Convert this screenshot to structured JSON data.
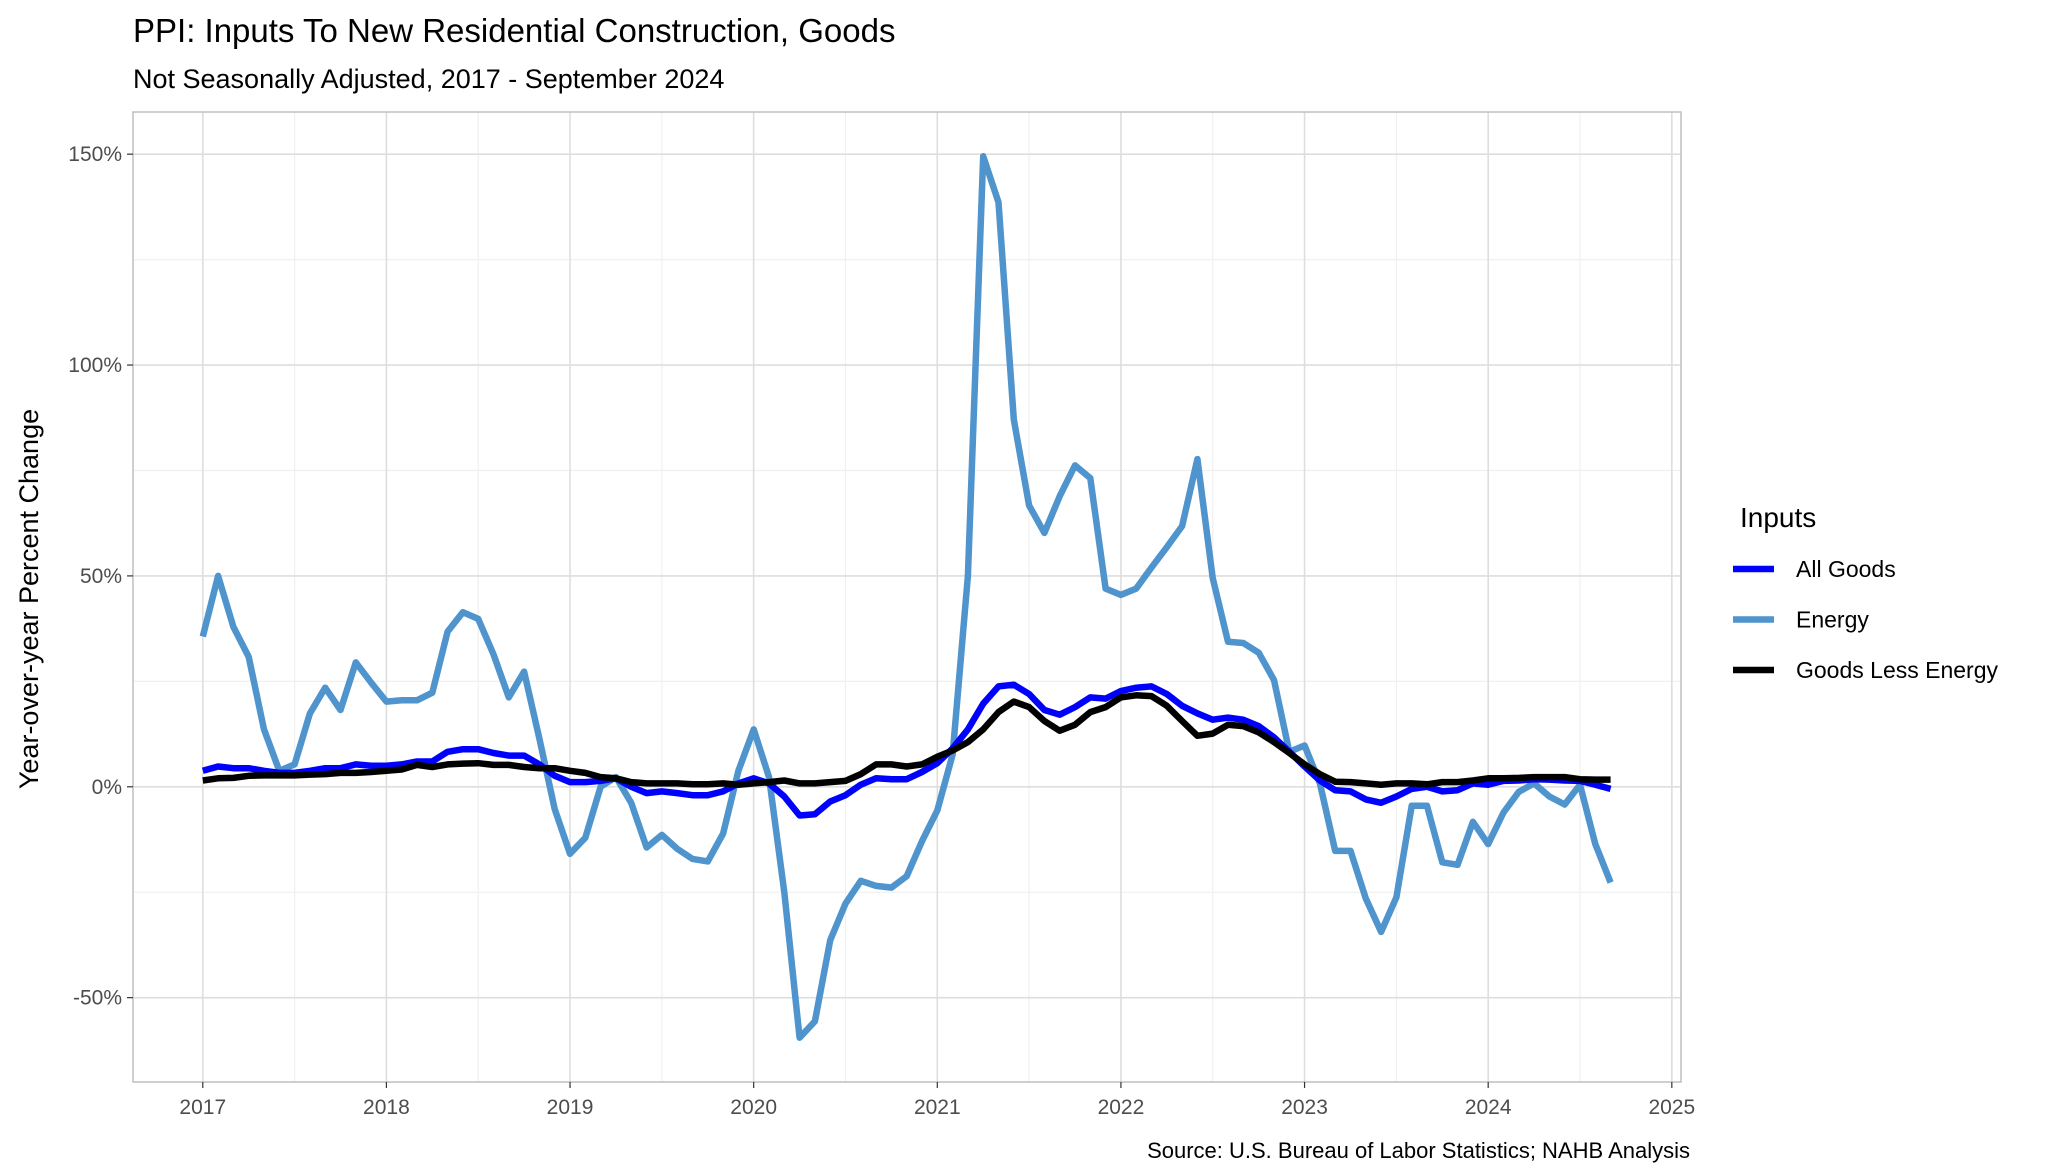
{
  "chart_data": {
    "type": "line",
    "title": "PPI: Inputs To New Residential Construction, Goods",
    "subtitle": "Not Seasonally Adjusted, 2017 - September 2024",
    "xlabel": "",
    "ylabel": "Year-over-year Percent Change",
    "caption": "Source: U.S. Bureau of Labor Statistics; NAHB Analysis",
    "x_start": "2017-01",
    "x_end": "2024-09",
    "x_frequency": "monthly",
    "xlim": [
      2016.62,
      2025.05
    ],
    "ylim": [
      -70,
      160
    ],
    "x_ticks": [
      "2017",
      "2018",
      "2019",
      "2020",
      "2021",
      "2022",
      "2023",
      "2024",
      "2025"
    ],
    "y_ticks": [
      {
        "value": 150,
        "label": "150%"
      },
      {
        "value": 100,
        "label": "100%"
      },
      {
        "value": 50,
        "label": "50%"
      },
      {
        "value": 0,
        "label": "0%"
      },
      {
        "value": -50,
        "label": "-50%"
      }
    ],
    "grid": true,
    "legend": {
      "title": "Inputs",
      "position": "right"
    },
    "series": [
      {
        "name": "All Goods",
        "color": "#0000FF",
        "values": [
          3.8,
          4.8,
          4.4,
          4.4,
          3.8,
          3.3,
          3.3,
          3.8,
          4.4,
          4.4,
          5.3,
          5,
          5,
          5.3,
          6,
          6,
          8.3,
          8.9,
          8.9,
          8,
          7.4,
          7.4,
          5.3,
          2.6,
          1.1,
          1.1,
          1.4,
          2,
          0,
          -1.5,
          -1.1,
          -1.5,
          -2,
          -2,
          -1.1,
          0.8,
          2,
          0.8,
          -2.3,
          -6.8,
          -6.5,
          -3.5,
          -2,
          0.5,
          2,
          1.8,
          1.8,
          3.5,
          5.6,
          9.1,
          13.6,
          19.7,
          23.8,
          24.2,
          22,
          18.2,
          17.1,
          18.9,
          21.2,
          20.9,
          22.7,
          23.5,
          23.8,
          22,
          19.2,
          17.4,
          15.9,
          16.4,
          15.9,
          14.4,
          11.7,
          8.3,
          4.8,
          1.5,
          -0.8,
          -1.1,
          -3,
          -3.8,
          -2.3,
          -0.5,
          0,
          -1.1,
          -0.8,
          0.8,
          0.5,
          1.4,
          1.5,
          1.8,
          1.7,
          1.5,
          1.4,
          0.5,
          -0.5
        ]
      },
      {
        "name": "Energy",
        "color": "#4F94CD",
        "values": [
          35.6,
          50,
          37.9,
          30.8,
          13.6,
          3.8,
          5.3,
          17.4,
          23.5,
          18.2,
          29.5,
          24.7,
          20.2,
          20.5,
          20.5,
          22.3,
          36.8,
          41.4,
          39.8,
          31.4,
          21.2,
          27.3,
          11.4,
          -5.3,
          -15.9,
          -12.1,
          0,
          2.3,
          -3.8,
          -14.4,
          -11.4,
          -14.7,
          -17.1,
          -17.7,
          -11.1,
          3.8,
          13.6,
          2.3,
          -25,
          -59.5,
          -55.6,
          -36.4,
          -27.7,
          -22.3,
          -23.5,
          -23.9,
          -21.2,
          -12.9,
          -5.6,
          7.6,
          50,
          149.5,
          138.6,
          87.1,
          66.7,
          60.2,
          68.9,
          76.2,
          73.2,
          47,
          45.5,
          47,
          52,
          56.8,
          61.8,
          77.7,
          49.5,
          34.4,
          34.1,
          31.8,
          25.3,
          8.3,
          9.8,
          0.8,
          -15.2,
          -15.2,
          -26.5,
          -34.4,
          -26.2,
          -4.5,
          -4.5,
          -17.9,
          -18.5,
          -8.3,
          -13.6,
          -6.1,
          -1.2,
          0.8,
          -2.3,
          -4.2,
          0.5,
          -13.6,
          -22.7
        ]
      },
      {
        "name": "Goods Less Energy",
        "color": "#000000",
        "values": [
          1.5,
          2,
          2.1,
          2.6,
          2.7,
          2.7,
          2.7,
          2.9,
          3,
          3.3,
          3.3,
          3.5,
          3.8,
          4.1,
          5.2,
          4.7,
          5.3,
          5.5,
          5.6,
          5.2,
          5.2,
          4.7,
          4.4,
          4.4,
          3.8,
          3.3,
          2.3,
          2,
          1.1,
          0.8,
          0.8,
          0.8,
          0.6,
          0.6,
          0.8,
          0.5,
          0.8,
          1.1,
          1.5,
          0.8,
          0.8,
          1.1,
          1.4,
          3,
          5.3,
          5.3,
          4.8,
          5.3,
          7.1,
          8.6,
          10.6,
          13.6,
          17.7,
          20.2,
          18.9,
          15.6,
          13.3,
          14.7,
          17.7,
          18.9,
          21.2,
          21.7,
          21.5,
          19.2,
          15.6,
          12.1,
          12.6,
          14.7,
          14.4,
          12.9,
          10.6,
          8,
          5.3,
          3,
          1.2,
          1.1,
          0.8,
          0.5,
          0.8,
          0.8,
          0.6,
          1.1,
          1.1,
          1.5,
          2,
          2,
          2.1,
          2.3,
          2.3,
          2.3,
          1.8,
          1.7,
          1.7
        ]
      }
    ]
  }
}
